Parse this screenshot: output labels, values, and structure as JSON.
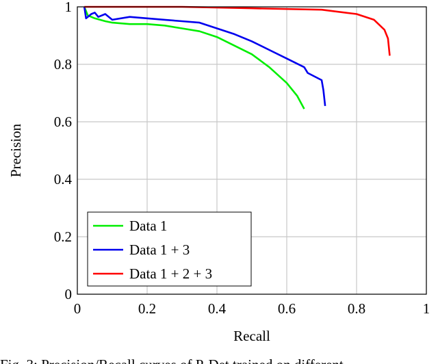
{
  "chart_data": {
    "type": "line",
    "xlabel": "Recall",
    "ylabel": "Precision",
    "xlim": [
      0,
      1
    ],
    "ylim": [
      0,
      1
    ],
    "xticks": [
      "0",
      "0.2",
      "0.4",
      "0.6",
      "0.8",
      "1"
    ],
    "yticks": [
      "0",
      "0.2",
      "0.4",
      "0.6",
      "0.8",
      "1"
    ],
    "xtick_values": [
      0,
      0.2,
      0.4,
      0.6,
      0.8,
      1
    ],
    "ytick_values": [
      0,
      0.2,
      0.4,
      0.6,
      0.8,
      1
    ],
    "grid": true,
    "legend_position": "bottom-left",
    "series": [
      {
        "name": "Data 1",
        "color": "#00ee00",
        "points": [
          [
            0.02,
            1
          ],
          [
            0.03,
            0.97
          ],
          [
            0.05,
            0.96
          ],
          [
            0.08,
            0.95
          ],
          [
            0.1,
            0.945
          ],
          [
            0.15,
            0.94
          ],
          [
            0.2,
            0.94
          ],
          [
            0.25,
            0.935
          ],
          [
            0.3,
            0.925
          ],
          [
            0.35,
            0.915
          ],
          [
            0.4,
            0.895
          ],
          [
            0.45,
            0.865
          ],
          [
            0.5,
            0.835
          ],
          [
            0.55,
            0.79
          ],
          [
            0.6,
            0.735
          ],
          [
            0.63,
            0.69
          ],
          [
            0.65,
            0.645
          ]
        ]
      },
      {
        "name": "Data 1 + 3",
        "color": "#0000ee",
        "points": [
          [
            0.02,
            1
          ],
          [
            0.025,
            0.96
          ],
          [
            0.04,
            0.975
          ],
          [
            0.05,
            0.98
          ],
          [
            0.06,
            0.965
          ],
          [
            0.08,
            0.975
          ],
          [
            0.1,
            0.955
          ],
          [
            0.15,
            0.965
          ],
          [
            0.2,
            0.96
          ],
          [
            0.25,
            0.955
          ],
          [
            0.3,
            0.95
          ],
          [
            0.35,
            0.945
          ],
          [
            0.4,
            0.925
          ],
          [
            0.45,
            0.905
          ],
          [
            0.5,
            0.88
          ],
          [
            0.55,
            0.85
          ],
          [
            0.6,
            0.82
          ],
          [
            0.65,
            0.79
          ],
          [
            0.66,
            0.77
          ],
          [
            0.7,
            0.745
          ],
          [
            0.705,
            0.71
          ],
          [
            0.71,
            0.655
          ]
        ]
      },
      {
        "name": "Data 1 + 2 + 3",
        "color": "#ff0000",
        "points": [
          [
            0.02,
            1
          ],
          [
            0.3,
            1
          ],
          [
            0.5,
            0.995
          ],
          [
            0.7,
            0.99
          ],
          [
            0.8,
            0.975
          ],
          [
            0.85,
            0.955
          ],
          [
            0.88,
            0.92
          ],
          [
            0.89,
            0.89
          ],
          [
            0.895,
            0.83
          ]
        ]
      }
    ]
  },
  "caption": "Fig. 3: Precision/Recall curves of P-Det trained on different"
}
